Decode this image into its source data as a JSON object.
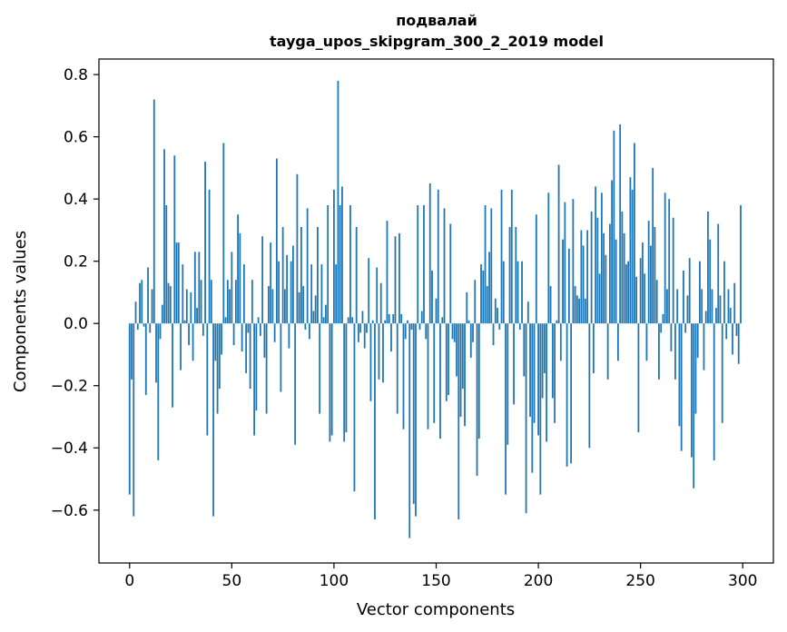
{
  "chart_data": {
    "type": "bar",
    "title": "подвалай",
    "subtitle": "tayga_upos_skipgram_300_2_2019 model",
    "xlabel": "Vector components",
    "ylabel": "Components values",
    "xlim": [
      -15,
      315
    ],
    "ylim": [
      -0.77,
      0.85
    ],
    "xticks": [
      0,
      50,
      100,
      150,
      200,
      250,
      300
    ],
    "yticks": [
      -0.6,
      -0.4,
      -0.2,
      0.0,
      0.2,
      0.4,
      0.6,
      0.8
    ],
    "xtick_labels": [
      "0",
      "50",
      "100",
      "150",
      "200",
      "250",
      "300"
    ],
    "ytick_labels": [
      "−0.6",
      "−0.4",
      "−0.2",
      "0.0",
      "0.2",
      "0.4",
      "0.6",
      "0.8"
    ],
    "bar_color": "#1f77b4",
    "grid": false,
    "values": [
      -0.55,
      -0.18,
      -0.62,
      0.07,
      -0.02,
      0.13,
      0.14,
      -0.01,
      -0.23,
      0.18,
      -0.03,
      0.11,
      0.72,
      -0.19,
      -0.44,
      -0.05,
      0.06,
      0.56,
      0.38,
      0.13,
      0.12,
      -0.27,
      0.54,
      0.26,
      0.26,
      -0.15,
      0.19,
      0.01,
      0.11,
      -0.07,
      0.1,
      -0.12,
      0.23,
      0.05,
      0.23,
      0.14,
      -0.04,
      0.52,
      -0.36,
      0.43,
      0.14,
      -0.62,
      -0.12,
      -0.29,
      -0.21,
      -0.1,
      0.58,
      0.02,
      0.14,
      0.11,
      0.23,
      -0.07,
      0.14,
      0.35,
      0.29,
      -0.09,
      0.19,
      -0.16,
      -0.03,
      -0.21,
      0.14,
      -0.36,
      -0.28,
      0.02,
      -0.04,
      0.28,
      -0.11,
      -0.29,
      0.12,
      0.26,
      0.11,
      -0.06,
      0.53,
      0.2,
      -0.22,
      0.31,
      0.11,
      0.22,
      -0.08,
      0.2,
      0.25,
      -0.39,
      0.48,
      0.1,
      0.31,
      0.12,
      -0.02,
      0.37,
      -0.05,
      0.19,
      0.04,
      0.09,
      0.31,
      -0.29,
      0.19,
      0.02,
      0.06,
      0.38,
      -0.38,
      -0.36,
      0.43,
      0.19,
      0.78,
      0.38,
      0.44,
      -0.38,
      -0.35,
      0.02,
      0.38,
      0.02,
      -0.54,
      0.31,
      -0.06,
      -0.03,
      0.04,
      -0.08,
      -0.03,
      0.21,
      -0.25,
      0.01,
      -0.63,
      0.18,
      -0.18,
      0.13,
      -0.19,
      0.01,
      0.33,
      0.03,
      -0.09,
      0.03,
      0.28,
      -0.29,
      0.29,
      0.03,
      -0.34,
      -0.05,
      0.01,
      -0.69,
      -0.02,
      -0.58,
      -0.62,
      0.38,
      -0.02,
      0.04,
      0.38,
      -0.05,
      -0.34,
      0.45,
      0.17,
      -0.32,
      0.08,
      0.43,
      -0.37,
      0.02,
      0.37,
      -0.25,
      -0.23,
      0.32,
      -0.05,
      -0.06,
      -0.17,
      -0.63,
      -0.3,
      -0.21,
      -0.33,
      0.1,
      0.01,
      -0.11,
      -0.06,
      0.14,
      -0.49,
      -0.37,
      0.19,
      0.17,
      0.38,
      0.12,
      0.23,
      0.37,
      -0.07,
      0.08,
      0.05,
      -0.02,
      0.43,
      0.2,
      -0.55,
      -0.39,
      0.31,
      0.43,
      -0.26,
      0.31,
      0.2,
      -0.02,
      0.2,
      -0.17,
      -0.61,
      0.07,
      -0.3,
      -0.48,
      -0.32,
      0.35,
      -0.36,
      -0.55,
      -0.24,
      -0.16,
      -0.38,
      0.42,
      0.12,
      -0.24,
      -0.32,
      0.01,
      0.51,
      -0.12,
      0.27,
      0.39,
      -0.46,
      0.24,
      -0.45,
      0.4,
      0.12,
      0.09,
      0.08,
      0.3,
      0.25,
      0.08,
      0.3,
      -0.4,
      0.36,
      -0.16,
      0.44,
      0.34,
      0.16,
      0.42,
      0.29,
      0.22,
      -0.18,
      0.32,
      0.46,
      0.62,
      0.27,
      -0.12,
      0.64,
      0.36,
      0.29,
      0.19,
      0.2,
      0.47,
      0.43,
      0.58,
      0.15,
      -0.35,
      0.21,
      0.26,
      0.16,
      -0.12,
      0.33,
      0.25,
      0.5,
      0.31,
      0.14,
      -0.18,
      -0.03,
      0.03,
      0.42,
      0.11,
      0.4,
      -0.09,
      0.34,
      -0.18,
      0.11,
      -0.33,
      -0.41,
      0.17,
      -0.03,
      0.09,
      0.21,
      -0.43,
      -0.53,
      -0.29,
      -0.11,
      0.2,
      0.11,
      -0.15,
      0.04,
      0.36,
      0.27,
      0.11,
      -0.44,
      0.05,
      0.32,
      0.09,
      -0.32,
      0.2,
      -0.05,
      0.11,
      0.05,
      -0.1,
      0.13,
      -0.04,
      -0.13,
      0.38
    ]
  }
}
